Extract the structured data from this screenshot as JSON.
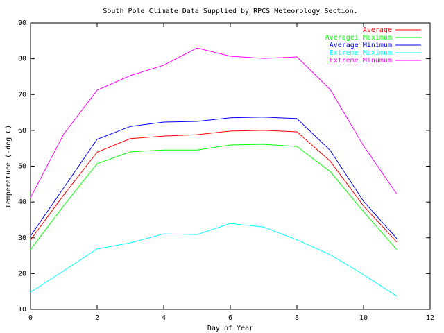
{
  "chart_data": {
    "type": "line",
    "title": "South Pole Climate Data Supplied by RPCS Meteorology Section.",
    "x_label": "Day of Year",
    "y_label": "Temperature (-deg C)",
    "x": [
      0,
      1,
      2,
      3,
      4,
      5,
      6,
      7,
      8,
      9,
      10,
      11
    ],
    "series": [
      {
        "name": "Average",
        "color": "#ff0000",
        "values": [
          29.4,
          42,
          53.9,
          57.7,
          58.4,
          58.8,
          59.8,
          60,
          59.6,
          51.4,
          38.9,
          28.8
        ]
      },
      {
        "name": "Averagei Maximum",
        "color": "#00ff00",
        "values": [
          26.7,
          39,
          50.7,
          54,
          54.5,
          54.5,
          55.9,
          56.1,
          55.5,
          48.5,
          37.3,
          26.7
        ]
      },
      {
        "name": "Average Minimum",
        "color": "#0000ff",
        "values": [
          30.5,
          44,
          57.5,
          61.1,
          62.3,
          62.5,
          63.5,
          63.7,
          63.3,
          54.4,
          40.2,
          29.8
        ]
      },
      {
        "name": "Extreme Maximum",
        "color": "#00ffff",
        "values": [
          14.8,
          20.8,
          26.9,
          28.6,
          31.1,
          30.9,
          34,
          33,
          29.4,
          25.3,
          19.7,
          13.7
        ]
      },
      {
        "name": "Extreme Minumum",
        "color": "#ff00ff",
        "values": [
          41.2,
          59,
          71.2,
          75.3,
          78.2,
          83,
          80.7,
          80.1,
          80.5,
          71.4,
          55.7,
          42.2
        ]
      }
    ],
    "xlim": [
      0,
      12
    ],
    "xticks": [
      0,
      2,
      4,
      6,
      8,
      10,
      12
    ],
    "ylim": [
      10,
      90
    ],
    "yticks": [
      10,
      20,
      30,
      40,
      50,
      60,
      70,
      80,
      90
    ],
    "grid": false,
    "legend": "top-right"
  }
}
